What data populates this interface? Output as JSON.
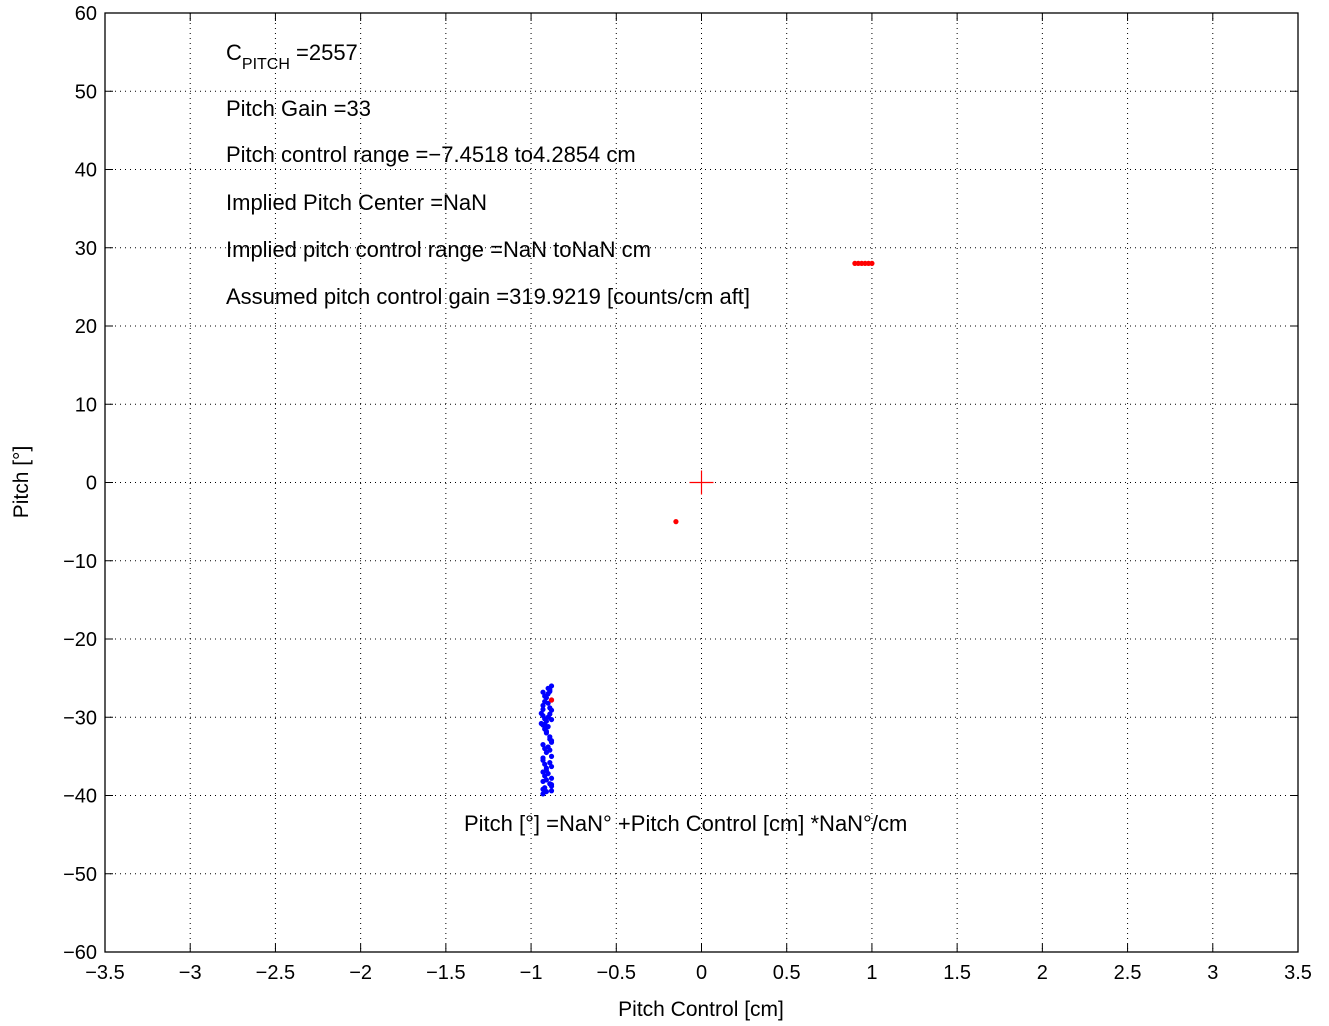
{
  "chart_data": {
    "type": "scatter",
    "xlabel": "Pitch Control [cm]",
    "ylabel": "Pitch [°]",
    "xlim": [
      -3.5,
      3.5
    ],
    "ylim": [
      -60,
      60
    ],
    "grid": true,
    "x_ticks": [
      -3.5,
      -3,
      -2.5,
      -2,
      -1.5,
      -1,
      -0.5,
      0,
      0.5,
      1,
      1.5,
      2,
      2.5,
      3,
      3.5
    ],
    "x_tick_labels": [
      "−3.5",
      "−3",
      "−2.5",
      "−2",
      "−1.5",
      "−1",
      "−0.5",
      "0",
      "0.5",
      "1",
      "1.5",
      "2",
      "2.5",
      "3",
      "3.5"
    ],
    "y_ticks": [
      -60,
      -50,
      -40,
      -30,
      -20,
      -10,
      0,
      10,
      20,
      30,
      40,
      50,
      60
    ],
    "y_tick_labels": [
      "−60",
      "−50",
      "−40",
      "−30",
      "−20",
      "−10",
      "0",
      "10",
      "20",
      "30",
      "40",
      "50",
      "60"
    ],
    "series": [
      {
        "color": "#0000ff",
        "marker": "dot",
        "x": [
          -0.94,
          -0.93,
          -0.92,
          -0.91,
          -0.9,
          -0.89,
          -0.88,
          -0.93,
          -0.92,
          -0.91,
          -0.9,
          -0.89,
          -0.88,
          -0.94,
          -0.93,
          -0.92,
          -0.91,
          -0.9,
          -0.89,
          -0.88,
          -0.93,
          -0.92,
          -0.9,
          -0.89,
          -0.88,
          -0.93,
          -0.92,
          -0.91,
          -0.9,
          -0.89,
          -0.88,
          -0.93,
          -0.92,
          -0.91,
          -0.89,
          -0.88,
          -0.93,
          -0.92,
          -0.91,
          -0.9,
          -0.89,
          -0.88,
          -0.93,
          -0.92,
          -0.91,
          -0.9,
          -0.89,
          -0.88,
          -0.93,
          -0.92,
          -0.91,
          -0.89,
          -0.88,
          -0.93,
          -0.91,
          -0.88,
          -0.93,
          -0.88,
          -0.93,
          -0.88
        ],
        "y": [
          -29.5,
          -29.8,
          -30.2,
          -30.5,
          -30.0,
          -29.6,
          -30.3,
          -31.0,
          -31.5,
          -32.0,
          -31.2,
          -32.5,
          -33.0,
          -30.8,
          -28.5,
          -28.0,
          -27.5,
          -27.0,
          -26.5,
          -26.0,
          -26.8,
          -27.3,
          -28.2,
          -28.8,
          -29.1,
          -33.5,
          -34.0,
          -34.5,
          -33.8,
          -34.2,
          -35.0,
          -35.5,
          -36.0,
          -36.5,
          -35.8,
          -36.3,
          -37.0,
          -37.5,
          -38.0,
          -37.2,
          -38.5,
          -38.8,
          -38.2,
          -39.0,
          -39.5,
          -26.3,
          -26.7,
          -27.8,
          -29.0,
          -30.9,
          -31.8,
          -32.8,
          -33.2,
          -35.2,
          -36.8,
          -37.8,
          -39.2,
          -39.4,
          -39.8,
          -38.6
        ]
      },
      {
        "color": "#ff0000",
        "marker": "dot",
        "x": [
          0.9,
          0.92,
          0.94,
          0.96,
          0.98,
          1.0,
          -0.15,
          -0.88
        ],
        "y": [
          28.0,
          28.0,
          28.0,
          28.0,
          28.0,
          28.0,
          -5.0,
          -27.8
        ]
      }
    ],
    "center_marker": {
      "x": 0,
      "y": 0,
      "color": "#ff0000",
      "marker": "+"
    },
    "annotations": {
      "c_pitch_main": "C",
      "c_pitch_sub": "PITCH",
      "c_pitch_value": " =2557",
      "line2": "Pitch Gain =33",
      "line3": "Pitch control range =−7.4518 to4.2854 cm",
      "line4": "Implied Pitch Center =NaN",
      "line5": "Implied pitch control range =NaN toNaN cm",
      "line6": "Assumed pitch control gain =319.9219 [counts/cm aft]",
      "equation": "Pitch [°] =NaN° +Pitch Control [cm] *NaN°/cm"
    }
  }
}
